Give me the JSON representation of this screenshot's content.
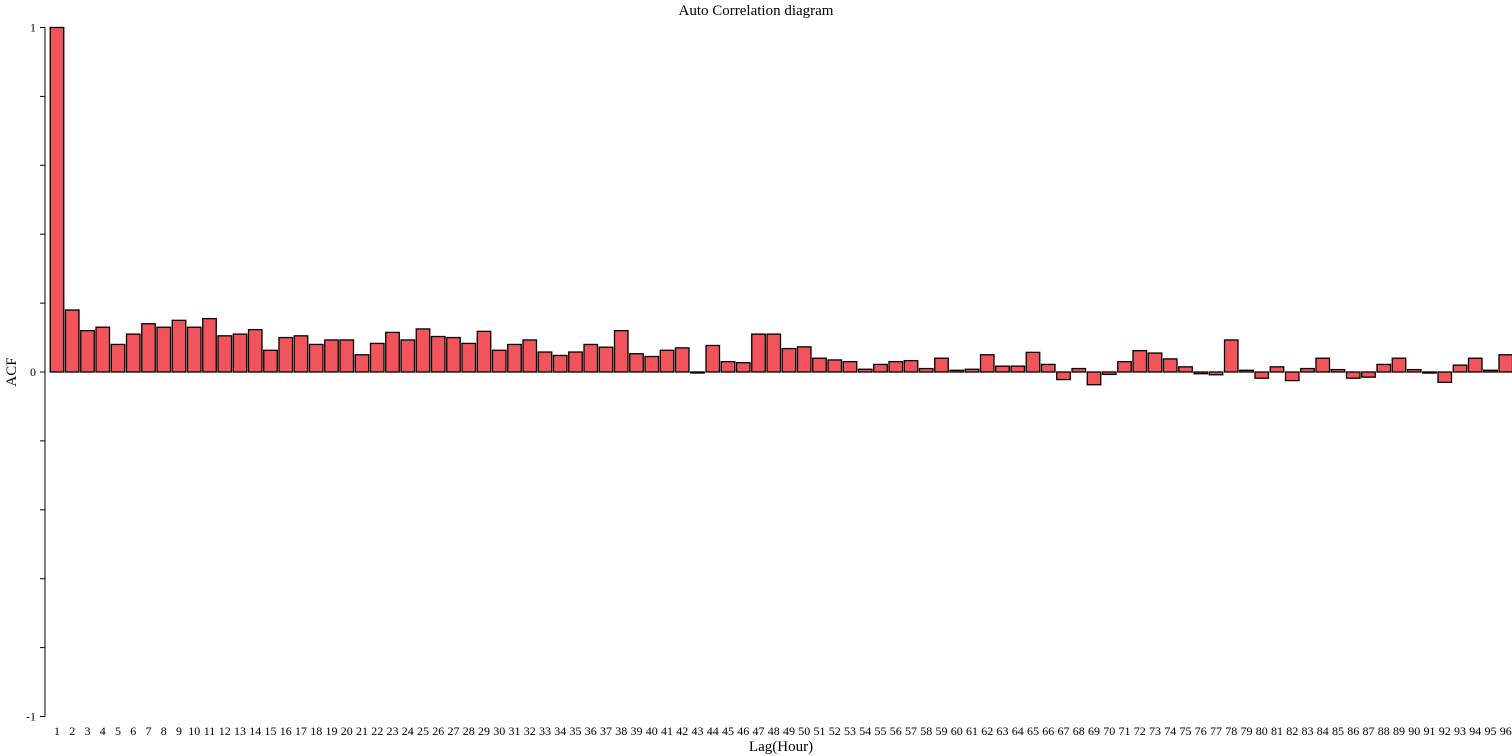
{
  "chart_data": {
    "type": "bar",
    "title": "Auto Correlation diagram",
    "xlabel": "Lag(Hour)",
    "ylabel": "ACF",
    "ylim": [
      -1,
      1
    ],
    "yticks_labeled": [
      {
        "value": 1,
        "label": "1"
      },
      {
        "value": 0,
        "label": "0"
      },
      {
        "value": -1,
        "label": "-1"
      }
    ],
    "yticks_minor": [
      0.8,
      0.6,
      0.4,
      0.2,
      -0.2,
      -0.4,
      -0.6,
      -0.8
    ],
    "grid": false,
    "legend": "none",
    "bar_color": "#f2545b",
    "bar_edge_color": "#000000",
    "categories": [
      "1",
      "2",
      "3",
      "4",
      "5",
      "6",
      "7",
      "8",
      "9",
      "10",
      "11",
      "12",
      "13",
      "14",
      "15",
      "16",
      "17",
      "18",
      "19",
      "20",
      "21",
      "22",
      "23",
      "24",
      "25",
      "26",
      "27",
      "28",
      "29",
      "30",
      "31",
      "32",
      "33",
      "34",
      "35",
      "36",
      "37",
      "38",
      "39",
      "40",
      "41",
      "42",
      "43",
      "44",
      "45",
      "46",
      "47",
      "48",
      "49",
      "50",
      "51",
      "52",
      "53",
      "54",
      "55",
      "56",
      "57",
      "58",
      "59",
      "60",
      "61",
      "62",
      "63",
      "64",
      "65",
      "66",
      "67",
      "68",
      "69",
      "70",
      "71",
      "72",
      "73",
      "74",
      "75",
      "76",
      "77",
      "78",
      "79",
      "80",
      "81",
      "82",
      "83",
      "84",
      "85",
      "86",
      "87",
      "88",
      "89",
      "90",
      "91",
      "92",
      "93",
      "94",
      "95",
      "96"
    ],
    "values": [
      1.0,
      0.18,
      0.12,
      0.13,
      0.08,
      0.11,
      0.14,
      0.13,
      0.15,
      0.13,
      0.155,
      0.105,
      0.11,
      0.123,
      0.063,
      0.1,
      0.105,
      0.08,
      0.093,
      0.093,
      0.05,
      0.083,
      0.115,
      0.093,
      0.125,
      0.103,
      0.1,
      0.083,
      0.118,
      0.063,
      0.08,
      0.093,
      0.058,
      0.048,
      0.058,
      0.08,
      0.072,
      0.12,
      0.053,
      0.045,
      0.063,
      0.07,
      0.0,
      0.077,
      0.03,
      0.027,
      0.11,
      0.11,
      0.068,
      0.073,
      0.04,
      0.035,
      0.03,
      0.008,
      0.022,
      0.03,
      0.033,
      0.01,
      0.04,
      0.005,
      0.008,
      0.05,
      0.017,
      0.017,
      0.057,
      0.022,
      -0.022,
      0.01,
      -0.037,
      -0.007,
      0.03,
      0.062,
      0.055,
      0.038,
      0.015,
      -0.005,
      -0.008,
      0.093,
      0.005,
      -0.018,
      0.015,
      -0.025,
      0.01,
      0.04,
      0.007,
      -0.018,
      -0.015,
      0.022,
      0.04,
      0.007,
      -0.003,
      -0.03,
      0.02,
      0.04,
      0.005,
      0.05
    ]
  }
}
